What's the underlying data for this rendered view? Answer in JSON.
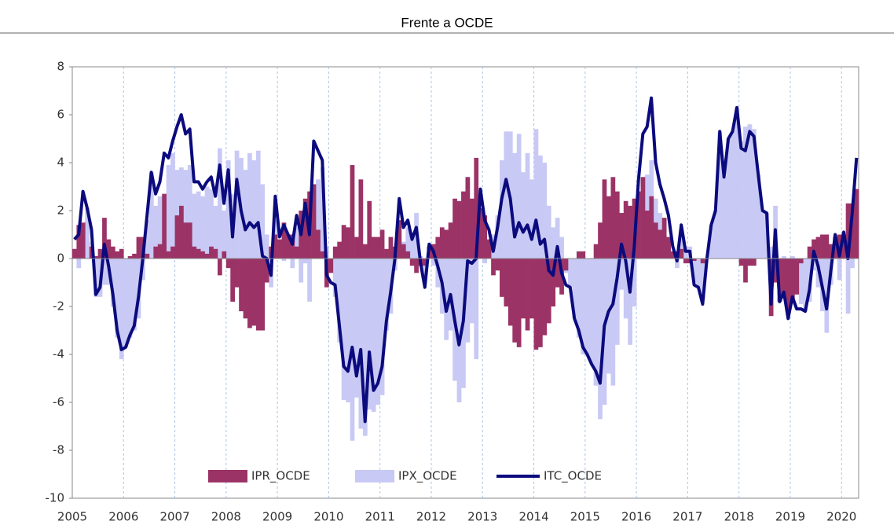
{
  "chart_data": {
    "type": "combo",
    "title": "Frente a OCDE",
    "categories": [
      "2005",
      null,
      null,
      null,
      null,
      null,
      null,
      null,
      null,
      null,
      null,
      null,
      "2006",
      null,
      null,
      null,
      null,
      null,
      null,
      null,
      null,
      null,
      null,
      null,
      "2007",
      null,
      null,
      null,
      null,
      null,
      null,
      null,
      null,
      null,
      null,
      null,
      "2008",
      null,
      null,
      null,
      null,
      null,
      null,
      null,
      null,
      null,
      null,
      null,
      "2009",
      null,
      null,
      null,
      null,
      null,
      null,
      null,
      null,
      null,
      null,
      null,
      "2010",
      null,
      null,
      null,
      null,
      null,
      null,
      null,
      null,
      null,
      null,
      null,
      "2011",
      null,
      null,
      null,
      null,
      null,
      null,
      null,
      null,
      null,
      null,
      null,
      "2012",
      null,
      null,
      null,
      null,
      null,
      null,
      null,
      null,
      null,
      null,
      null,
      "2013",
      null,
      null,
      null,
      null,
      null,
      null,
      null,
      null,
      null,
      null,
      null,
      "2014",
      null,
      null,
      null,
      null,
      null,
      null,
      null,
      null,
      null,
      null,
      null,
      "2015",
      null,
      null,
      null,
      null,
      null,
      null,
      null,
      null,
      null,
      null,
      null,
      "2016",
      null,
      null,
      null,
      null,
      null,
      null,
      null,
      null,
      null,
      null,
      null,
      "2017",
      null,
      null,
      null,
      null,
      null,
      null,
      null,
      null,
      null,
      null,
      null,
      "2018",
      null,
      null,
      null,
      null,
      null,
      null,
      null,
      null,
      null,
      null,
      null,
      "2019",
      null,
      null,
      null,
      null,
      null,
      null,
      null,
      null,
      null,
      null,
      null,
      "2020",
      null,
      null,
      null
    ],
    "series": [
      {
        "name": "IPR_OCDE",
        "type": "bar",
        "color": "#9b3366",
        "values": [
          0.4,
          1.4,
          1.5,
          0.0,
          0.5,
          0.1,
          0.4,
          1.7,
          0.8,
          0.5,
          0.3,
          0.4,
          0.0,
          0.1,
          0.2,
          0.9,
          0.9,
          0.2,
          0.0,
          0.5,
          0.6,
          2.7,
          0.3,
          0.5,
          1.8,
          2.2,
          1.5,
          1.5,
          0.5,
          0.4,
          0.3,
          0.2,
          0.5,
          0.4,
          -0.7,
          0.3,
          -0.4,
          -1.8,
          -1.2,
          -2.2,
          -2.5,
          -2.9,
          -2.8,
          -3.0,
          -3.0,
          -1.0,
          0.5,
          1.0,
          0.8,
          1.5,
          1.0,
          1.0,
          0.5,
          2.0,
          2.5,
          2.8,
          3.1,
          1.2,
          0.3,
          -1.2,
          -0.6,
          0.5,
          0.7,
          1.4,
          1.3,
          3.9,
          0.9,
          3.3,
          0.6,
          2.4,
          0.9,
          0.9,
          1.2,
          0.4,
          0.9,
          0.5,
          1.6,
          0.6,
          0.3,
          -0.3,
          -0.6,
          -0.3,
          -0.3,
          0.5,
          0.6,
          0.9,
          1.3,
          1.2,
          1.5,
          2.5,
          2.4,
          2.8,
          3.4,
          2.5,
          4.2,
          2.1,
          1.8,
          0.8,
          -0.7,
          -0.5,
          -1.6,
          -2.0,
          -2.8,
          -3.5,
          -3.7,
          -2.5,
          -3.0,
          -2.5,
          -3.8,
          -3.7,
          -3.2,
          -2.7,
          -2.0,
          -1.2,
          -1.5,
          -0.5,
          0.0,
          0.0,
          0.3,
          0.3,
          0.0,
          0.0,
          0.6,
          1.5,
          3.3,
          2.6,
          3.4,
          2.8,
          1.9,
          2.4,
          2.2,
          2.5,
          2.8,
          3.4,
          2.0,
          2.6,
          1.5,
          1.2,
          1.7,
          0.9,
          0.3,
          0.3,
          0.4,
          -0.2,
          -0.2,
          -0.1,
          0.0,
          -0.2,
          0.0,
          0.0,
          0.0,
          0.0,
          0.0,
          0.0,
          0.0,
          0.0,
          -0.3,
          -1.0,
          -0.3,
          -0.3,
          0.0,
          0.0,
          0.0,
          -2.4,
          -1.0,
          -1.8,
          -1.5,
          -2.2,
          -1.7,
          -1.5,
          -0.2,
          0.0,
          0.5,
          0.8,
          0.9,
          1.0,
          1.0,
          0.6,
          0.9,
          1.0,
          1.0,
          2.3,
          2.3,
          2.9
        ]
      },
      {
        "name": "IPX_OCDE",
        "type": "bar",
        "color": "#c9c9f5",
        "values": [
          0.4,
          -0.4,
          1.3,
          2.1,
          0.7,
          -1.6,
          -1.6,
          -1.1,
          -1.1,
          -2.0,
          -3.3,
          -4.2,
          -3.7,
          -3.3,
          -3.0,
          -2.5,
          -0.9,
          1.6,
          3.6,
          2.2,
          2.6,
          1.7,
          3.9,
          4.4,
          3.7,
          3.8,
          3.7,
          3.9,
          2.7,
          2.8,
          2.6,
          3.0,
          2.9,
          2.2,
          4.6,
          2.0,
          4.1,
          2.7,
          4.5,
          4.2,
          3.7,
          4.4,
          4.1,
          4.5,
          3.1,
          1.0,
          -1.2,
          1.6,
          0.1,
          -0.1,
          0.0,
          -0.4,
          1.3,
          -1.0,
          -0.2,
          -1.8,
          1.8,
          3.3,
          3.8,
          0.5,
          -0.4,
          -1.6,
          -3.5,
          -5.9,
          -6.0,
          -7.6,
          -5.8,
          -7.1,
          -7.4,
          -6.3,
          -6.4,
          -6.1,
          -5.7,
          -3.0,
          -2.3,
          -0.5,
          0.9,
          0.7,
          1.3,
          1.1,
          1.9,
          0.1,
          -0.9,
          0.1,
          -0.3,
          -1.2,
          -2.3,
          -3.4,
          -3.0,
          -5.1,
          -6.0,
          -5.4,
          -3.5,
          -2.7,
          -4.2,
          0.8,
          -0.2,
          0.4,
          1.0,
          1.8,
          4.1,
          5.3,
          5.3,
          4.4,
          5.2,
          3.6,
          4.4,
          3.3,
          5.4,
          4.3,
          4.0,
          2.2,
          1.3,
          1.7,
          0.9,
          -0.6,
          -1.2,
          -2.5,
          -3.3,
          -4.0,
          -4.0,
          -4.4,
          -5.3,
          -6.7,
          -6.1,
          -4.8,
          -5.3,
          -3.6,
          -1.3,
          -2.5,
          -3.6,
          -2.0,
          0.5,
          1.8,
          3.5,
          4.1,
          2.5,
          1.9,
          0.8,
          0.9,
          0.2,
          -0.4,
          1.0,
          0.5,
          0.5,
          -1.0,
          -1.2,
          -1.7,
          0.0,
          1.4,
          2.0,
          5.3,
          3.4,
          5.0,
          5.3,
          6.3,
          4.9,
          5.5,
          5.6,
          5.4,
          3.5,
          2.0,
          1.9,
          0.5,
          2.2,
          0.0,
          0.1,
          -0.3,
          0.1,
          -0.6,
          -1.9,
          -2.2,
          -1.8,
          -0.5,
          -1.2,
          -2.2,
          -3.1,
          -1.1,
          0.1,
          -0.9,
          0.1,
          -2.3,
          -0.4,
          1.3
        ]
      },
      {
        "name": "ITC_OCDE",
        "type": "line",
        "color": "#0b0b7e",
        "values": [
          0.8,
          1.0,
          2.8,
          2.1,
          1.2,
          -1.5,
          -1.2,
          0.6,
          -0.3,
          -1.5,
          -3.0,
          -3.8,
          -3.7,
          -3.2,
          -2.8,
          -1.6,
          0.0,
          1.8,
          3.6,
          2.7,
          3.2,
          4.4,
          4.2,
          4.9,
          5.5,
          6.0,
          5.2,
          5.4,
          3.2,
          3.2,
          2.9,
          3.2,
          3.4,
          2.6,
          3.9,
          2.3,
          3.7,
          0.9,
          3.3,
          2.0,
          1.2,
          1.5,
          1.3,
          1.5,
          0.1,
          0.0,
          -0.7,
          2.6,
          0.9,
          1.4,
          1.0,
          0.6,
          1.8,
          1.0,
          2.3,
          1.0,
          4.9,
          4.5,
          4.1,
          -0.7,
          -1.0,
          -1.1,
          -2.8,
          -4.5,
          -4.7,
          -3.7,
          -4.9,
          -3.8,
          -6.8,
          -3.9,
          -5.5,
          -5.2,
          -4.5,
          -2.6,
          -1.4,
          0.0,
          2.5,
          1.3,
          1.6,
          0.8,
          1.3,
          -0.2,
          -1.2,
          0.6,
          0.3,
          -0.3,
          -1.0,
          -2.2,
          -1.5,
          -2.6,
          -3.6,
          -2.6,
          -0.1,
          -0.2,
          0.0,
          2.9,
          1.6,
          1.2,
          0.3,
          1.3,
          2.5,
          3.3,
          2.5,
          0.9,
          1.5,
          1.1,
          1.4,
          0.8,
          1.6,
          0.6,
          0.8,
          -0.5,
          -0.7,
          0.5,
          -0.6,
          -1.1,
          -1.2,
          -2.5,
          -3.0,
          -3.7,
          -4.0,
          -4.4,
          -4.7,
          -5.2,
          -2.8,
          -2.2,
          -1.9,
          -0.8,
          0.6,
          -0.1,
          -1.4,
          0.5,
          3.3,
          5.2,
          5.5,
          6.7,
          4.0,
          3.1,
          2.5,
          1.8,
          0.5,
          -0.1,
          1.4,
          0.3,
          0.3,
          -1.1,
          -1.2,
          -1.9,
          0.0,
          1.4,
          2.0,
          5.3,
          3.4,
          5.0,
          5.3,
          6.3,
          4.6,
          4.5,
          5.3,
          5.1,
          3.5,
          2.0,
          1.9,
          -1.9,
          1.2,
          -1.8,
          -1.4,
          -2.5,
          -1.6,
          -2.1,
          -2.1,
          -2.2,
          -1.3,
          0.3,
          -0.3,
          -1.2,
          -2.1,
          -0.5,
          1.0,
          0.1,
          1.1,
          0.0,
          1.9,
          4.2
        ]
      }
    ],
    "ylim": [
      -10,
      8
    ],
    "yticks": [
      -10,
      -8,
      -6,
      -4,
      -2,
      0,
      2,
      4,
      6,
      8
    ],
    "xgrid": true,
    "legend": "bottom"
  }
}
